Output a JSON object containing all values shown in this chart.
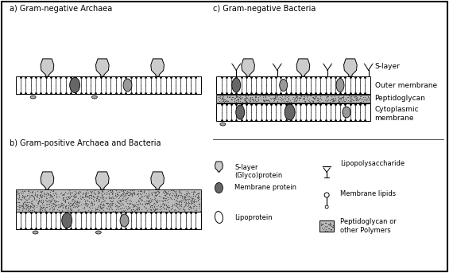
{
  "bg_color": "#ffffff",
  "border_color": "#111111",
  "s_protein_fill": "#cccccc",
  "s_protein_edge": "#000000",
  "mem_fill": "#ffffff",
  "mem_edge": "#000000",
  "prot_dark": "#666666",
  "prot_light": "#999999",
  "peptido_fill": "#bbbbbb",
  "lipo_fill": "#aaaaaa",
  "labels": {
    "a": "a) Gram-negative Archaea",
    "b": "b) Gram-positive Archaea and Bacteria",
    "c": "c) Gram-negative Bacteria",
    "s_layer": "S-layer",
    "outer_mem": "Outer membrane",
    "peptido": "Peptidoglycan",
    "cyto_mem": "Cytoplasmic\nmembrane",
    "leg_slayer": "S-layer\n(Glyco)protein",
    "leg_memprot": "Membrane protein",
    "leg_lipo": "Lipoprotein",
    "leg_lps": "Lipopolysaccharide",
    "leg_memlip": "Membrane lipids",
    "leg_peptido": "Peptidoglycan or\nother Polymers"
  },
  "figsize": [
    5.7,
    3.43
  ],
  "dpi": 100
}
